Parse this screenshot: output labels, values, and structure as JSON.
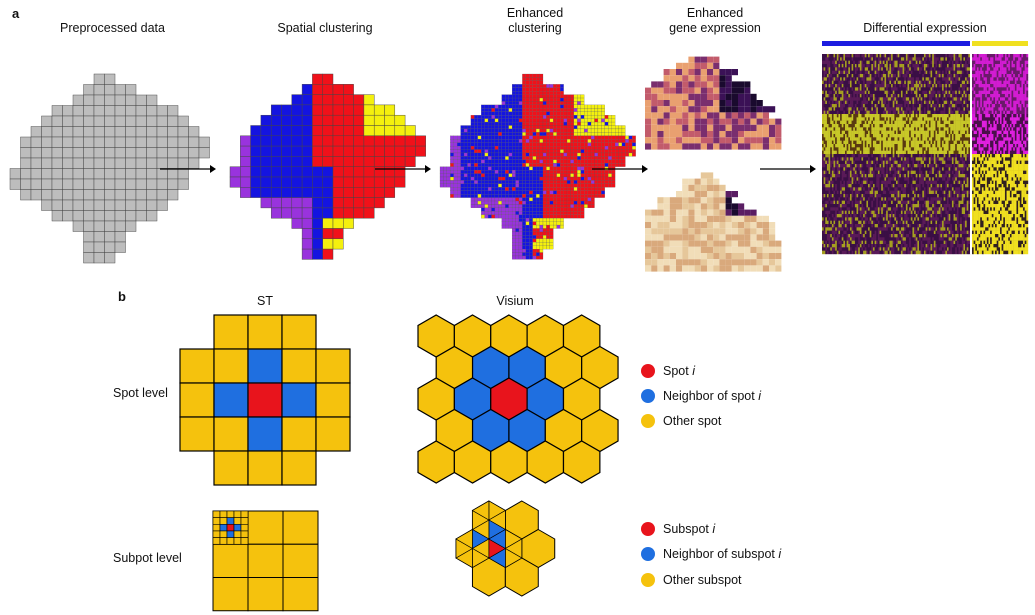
{
  "panels": {
    "a": "a",
    "b": "b"
  },
  "panel_a": {
    "stages": [
      {
        "title": "Preprocessed data"
      },
      {
        "title": "Spatial clustering"
      },
      {
        "title": "Enhanced\nclustering"
      },
      {
        "title": "Enhanced\ngene expression"
      },
      {
        "title": "Differential expression"
      }
    ]
  },
  "panel_b": {
    "columns": {
      "st": "ST",
      "visium": "Visium"
    },
    "rows": {
      "spot": "Spot level",
      "subspot": "Subpot level"
    },
    "legend_spot": [
      {
        "label": "Spot",
        "italic": "i",
        "color": "#e8141c"
      },
      {
        "label": "Neighbor of spot",
        "italic": "i",
        "color": "#1f6fe0"
      },
      {
        "label": "Other spot",
        "italic": "",
        "color": "#f5c20d"
      }
    ],
    "legend_subspot": [
      {
        "label": "Subspot",
        "italic": "i",
        "color": "#e8141c"
      },
      {
        "label": "Neighbor of subspot",
        "italic": "i",
        "color": "#1f6fe0"
      },
      {
        "label": "Other subspot",
        "italic": "",
        "color": "#f5c20d"
      }
    ]
  },
  "colors": {
    "grey": "#bdbdbd",
    "red": "#f0111a",
    "blue": "#1414e0",
    "purple": "#9933dd",
    "yellow": "#f4f00e",
    "gold": "#f5c20d",
    "spot_red": "#e8141c",
    "spot_blue": "#1f6fe0"
  }
}
